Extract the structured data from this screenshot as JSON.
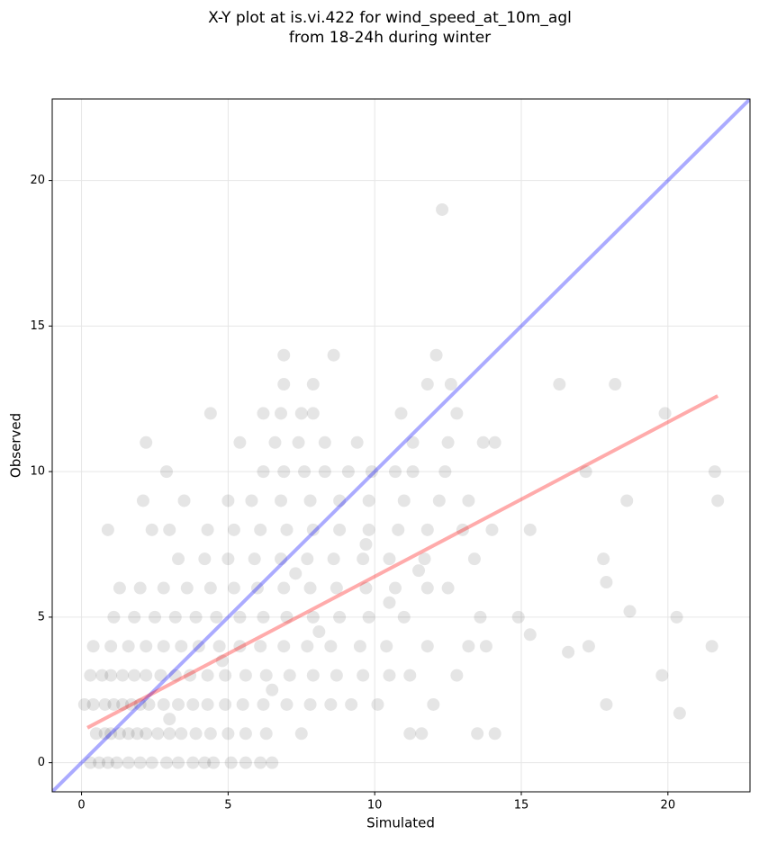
{
  "chart_data": {
    "type": "scatter",
    "title": [
      "X-Y plot at is.vi.422 for wind_speed_at_10m_agl",
      "from 18-24h during winter"
    ],
    "x_label": "Simulated",
    "y_label": "Observed",
    "xlim": [
      -1.0,
      22.8
    ],
    "ylim": [
      -1.0,
      22.8
    ],
    "xticks": [
      0,
      5,
      10,
      15,
      20
    ],
    "yticks": [
      0,
      5,
      10,
      15,
      20
    ],
    "grid": true,
    "x": [
      0.3,
      0.6,
      0.9,
      1.2,
      1.6,
      2.0,
      2.4,
      2.9,
      3.3,
      3.8,
      4.2,
      4.5,
      5.1,
      5.6,
      6.1,
      6.5,
      0.5,
      0.8,
      1.0,
      1.3,
      1.6,
      1.9,
      2.2,
      2.6,
      3.0,
      3.4,
      3.9,
      4.4,
      5.0,
      5.6,
      6.3,
      7.5,
      11.2,
      11.6,
      13.5,
      14.1,
      0.1,
      0.4,
      0.8,
      1.1,
      1.4,
      1.7,
      2.0,
      2.3,
      2.8,
      3.3,
      3.8,
      4.3,
      4.9,
      5.5,
      6.2,
      7.0,
      7.8,
      8.5,
      9.2,
      10.1,
      12.0,
      17.9,
      0.3,
      0.7,
      1.0,
      1.4,
      1.8,
      2.2,
      2.7,
      3.2,
      3.7,
      4.3,
      4.9,
      5.6,
      6.3,
      7.1,
      7.9,
      8.7,
      9.6,
      10.5,
      11.2,
      12.8,
      19.8,
      0.4,
      1.0,
      1.6,
      2.2,
      2.8,
      3.4,
      4.0,
      4.7,
      5.4,
      6.1,
      6.9,
      7.7,
      8.5,
      9.5,
      10.4,
      11.8,
      13.2,
      13.8,
      17.3,
      21.5,
      1.1,
      1.8,
      2.5,
      3.2,
      3.9,
      4.6,
      5.4,
      6.2,
      7.0,
      7.9,
      8.8,
      9.8,
      11.0,
      13.6,
      14.9,
      20.3,
      1.3,
      2.0,
      2.8,
      3.6,
      4.4,
      5.2,
      6.0,
      6.9,
      7.8,
      8.7,
      9.7,
      10.7,
      11.8,
      12.5,
      3.3,
      4.2,
      5.0,
      5.9,
      6.8,
      7.7,
      8.6,
      9.6,
      10.5,
      11.7,
      13.4,
      17.8,
      0.9,
      2.4,
      3.0,
      4.3,
      5.2,
      6.1,
      7.0,
      7.9,
      8.8,
      9.8,
      10.8,
      11.8,
      13.0,
      14.0,
      15.3,
      2.1,
      3.5,
      5.0,
      5.8,
      6.8,
      7.8,
      8.8,
      9.8,
      11.0,
      12.2,
      13.2,
      18.6,
      2.9,
      6.2,
      6.9,
      7.6,
      8.3,
      9.1,
      9.9,
      10.7,
      11.3,
      12.4,
      17.2,
      21.6,
      2.2,
      5.4,
      6.6,
      7.4,
      8.3,
      9.4,
      11.3,
      12.5,
      13.7,
      14.1,
      4.4,
      6.2,
      6.8,
      7.5,
      7.9,
      10.9,
      12.8,
      6.9,
      7.9,
      11.8,
      12.6,
      16.3,
      18.2,
      6.9,
      8.6,
      12.1,
      12.3,
      20.4,
      18.7,
      17.9,
      16.6,
      21.7,
      15.3,
      19.9,
      4.8,
      6.5,
      8.1,
      9.7,
      10.5,
      3.0,
      7.3,
      11.5
    ],
    "series": [
      {
        "color": "rgba(0,0,0,0.1)",
        "values": [
          0,
          0,
          0,
          0,
          0,
          0,
          0,
          0,
          0,
          0,
          0,
          0,
          0,
          0,
          0,
          0,
          1,
          1,
          1,
          1,
          1,
          1,
          1,
          1,
          1,
          1,
          1,
          1,
          1,
          1,
          1,
          1,
          1,
          1,
          1,
          1,
          2,
          2,
          2,
          2,
          2,
          2,
          2,
          2,
          2,
          2,
          2,
          2,
          2,
          2,
          2,
          2,
          2,
          2,
          2,
          2,
          2,
          2,
          3,
          3,
          3,
          3,
          3,
          3,
          3,
          3,
          3,
          3,
          3,
          3,
          3,
          3,
          3,
          3,
          3,
          3,
          3,
          3,
          3,
          4,
          4,
          4,
          4,
          4,
          4,
          4,
          4,
          4,
          4,
          4,
          4,
          4,
          4,
          4,
          4,
          4,
          4,
          4,
          4,
          5,
          5,
          5,
          5,
          5,
          5,
          5,
          5,
          5,
          5,
          5,
          5,
          5,
          5,
          5,
          5,
          6,
          6,
          6,
          6,
          6,
          6,
          6,
          6,
          6,
          6,
          6,
          6,
          6,
          6,
          7,
          7,
          7,
          7,
          7,
          7,
          7,
          7,
          7,
          7,
          7,
          7,
          8,
          8,
          8,
          8,
          8,
          8,
          8,
          8,
          8,
          8,
          8,
          8,
          8,
          8,
          8,
          9,
          9,
          9,
          9,
          9,
          9,
          9,
          9,
          9,
          9,
          9,
          9,
          10,
          10,
          10,
          10,
          10,
          10,
          10,
          10,
          10,
          10,
          10,
          10,
          11,
          11,
          11,
          11,
          11,
          11,
          11,
          11,
          11,
          11,
          12,
          12,
          12,
          12,
          12,
          12,
          12,
          13,
          13,
          13,
          13,
          13,
          13,
          14,
          14,
          14,
          19,
          1.7,
          5.2,
          6.2,
          3.8,
          9,
          4.4,
          12,
          3.5,
          2.5,
          4.5,
          7.5,
          5.5,
          1.5,
          6.5,
          6.6
        ]
      }
    ],
    "lines": [
      {
        "color": "rgba(0,0,255,0.33)",
        "x": [
          -1.0,
          22.8
        ],
        "values": [
          -1.0,
          22.8
        ]
      },
      {
        "color": "rgba(255,0,0,0.33)",
        "x": [
          0.2,
          21.7
        ],
        "values": [
          1.2,
          12.6
        ]
      }
    ]
  }
}
